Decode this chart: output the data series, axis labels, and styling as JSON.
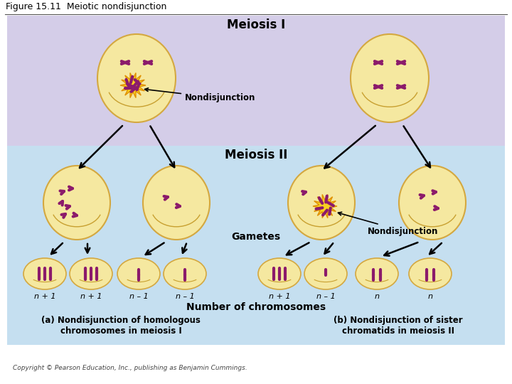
{
  "title": "Figure 15.11  Meiotic nondisjunction",
  "bg_purple": "#d4cde8",
  "bg_blue": "#c5dff0",
  "bg_white": "#ffffff",
  "cell_fill": "#f5e8a0",
  "cell_edge": "#d4a840",
  "cell_fill2": "#f0dca0",
  "chrom_color": "#8b1a6b",
  "text_color": "#000000",
  "meiosis1_label": "Meiosis I",
  "meiosis2_label": "Meiosis II",
  "gametes_label": "Gametes",
  "nondisjunction_label": "Nondisjunction",
  "num_chrom_label": "Number of chromosomes",
  "caption_a": "(a) Nondisjunction of homologous\nchromosomes in meiosis I",
  "caption_b": "(b) Nondisjunction of sister\nchromatids in meiosis II",
  "copyright": "Copyright © Pearson Education, Inc., publishing as Benjamin Cummings.",
  "gamete_labels_a": [
    "n + 1",
    "n + 1",
    "n – 1",
    "n – 1"
  ],
  "gamete_labels_b": [
    "n + 1",
    "n – 1",
    "n",
    "n"
  ],
  "burst_color": "#f8d020",
  "burst_edge": "#e09000"
}
